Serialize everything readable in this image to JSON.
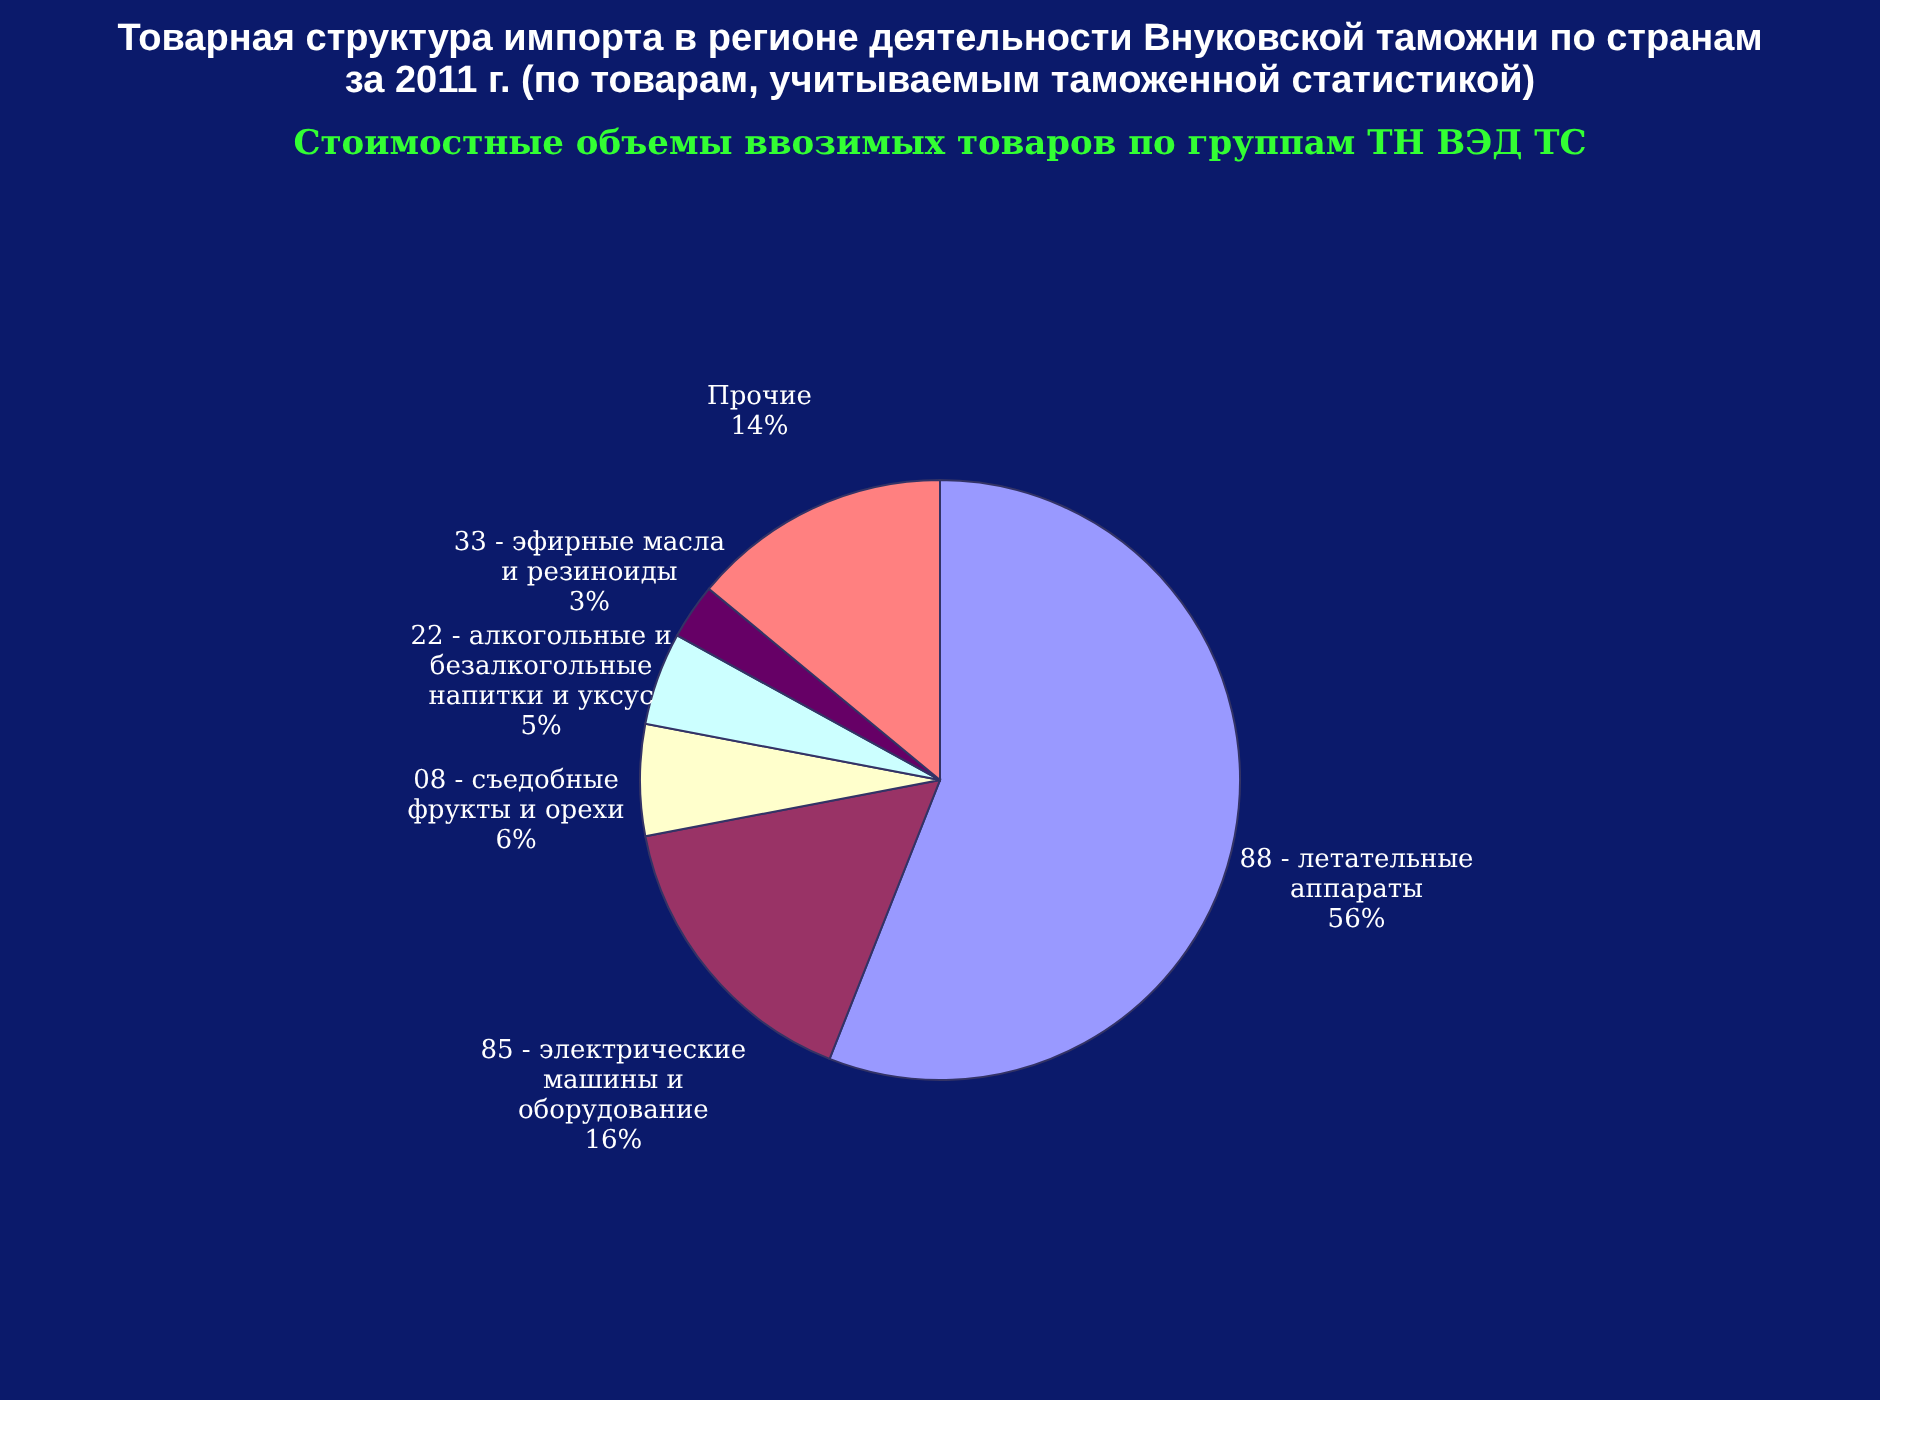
{
  "chart_data": {
    "type": "pie",
    "title": [
      "Товарная структура импорта в регионе деятельности Внуковской таможни по странам",
      "за 2011 г. (по товарам, учитываемым таможенной статистикой)"
    ],
    "subtitle": "Стоимостные объемы ввозимых товаров по группам ТН ВЭД ТС",
    "categories": [
      "88 - летательные аппараты",
      "85 - электрические машины и оборудование",
      "08 - съедобные фрукты и орехи",
      "22 - алкогольные и безалкогольные напитки и уксус",
      "33 - эфирные масла и резиноиды",
      "Прочие"
    ],
    "values": [
      56,
      16,
      6,
      5,
      3,
      14
    ],
    "value_labels": [
      "56%",
      "16%",
      "6%",
      "5%",
      "3%",
      "14%"
    ],
    "colors": [
      "#9999ff",
      "#993366",
      "#ffffcc",
      "#ccffff",
      "#660066",
      "#ff8080"
    ],
    "legend": false
  }
}
